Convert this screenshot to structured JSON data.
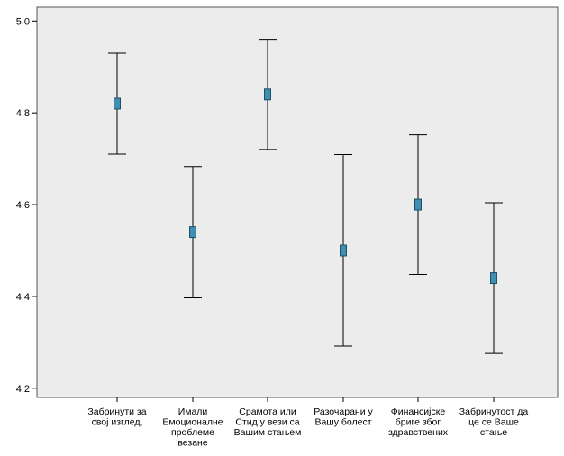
{
  "chart_data": {
    "type": "errorbar",
    "categories": [
      [
        "Забринути за",
        "свој изглед,"
      ],
      [
        "Имали",
        "Емоционалне",
        "проблеме",
        "везане"
      ],
      [
        "Срамота или",
        "Стид у вези са",
        "Вашим стањем"
      ],
      [
        "Разочарани у",
        "Вашу болест"
      ],
      [
        "Финансијске",
        "бриге због",
        "здравствених"
      ],
      [
        "Забринутост да",
        "це се Ваше",
        "стање"
      ]
    ],
    "means": [
      4.82,
      4.54,
      4.84,
      4.5,
      4.6,
      4.44
    ],
    "lower": [
      4.71,
      4.397,
      4.72,
      4.292,
      4.448,
      4.276
    ],
    "upper": [
      4.93,
      4.683,
      4.96,
      4.709,
      4.752,
      4.604
    ],
    "y_ticks": [
      "4,2",
      "4,4",
      "4,6",
      "4,8",
      "5,0"
    ],
    "ylim": [
      4.18,
      5.03
    ],
    "grid": false,
    "legend": "none",
    "colors": {
      "plot_background": "#ececec",
      "marker_fill": "#3e8fb0",
      "marker_stroke": "#1d4f66",
      "whisker": "#000000"
    }
  }
}
